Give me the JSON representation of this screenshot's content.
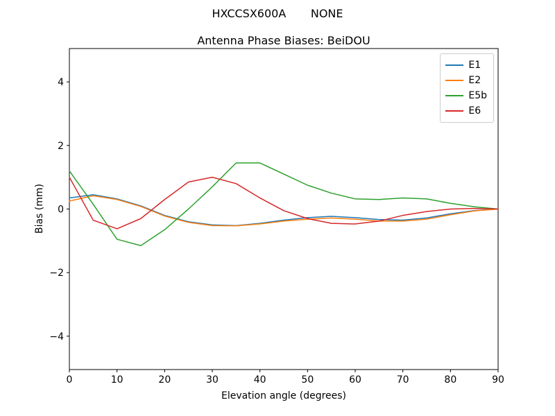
{
  "figure": {
    "suptitle": "HXCCSX600A       NONE",
    "title": "Antenna Phase Biases: BeiDOU",
    "xlabel": "Elevation angle (degrees)",
    "ylabel": "Bias (mm)"
  },
  "chart_data": {
    "type": "line",
    "suptitle": "HXCCSX600A       NONE",
    "title": "Antenna Phase Biases: BeiDOU",
    "xlabel": "Elevation angle (degrees)",
    "ylabel": "Bias (mm)",
    "xlim": [
      0,
      90
    ],
    "ylim": [
      -5.05,
      5.05
    ],
    "xticks": [
      0,
      10,
      20,
      30,
      40,
      50,
      60,
      70,
      80,
      90
    ],
    "yticks": [
      -4,
      -2,
      0,
      2,
      4
    ],
    "grid": false,
    "legend_position": "upper right",
    "x": [
      0,
      5,
      10,
      15,
      20,
      25,
      30,
      35,
      40,
      45,
      50,
      55,
      60,
      65,
      70,
      75,
      80,
      85,
      90
    ],
    "series": [
      {
        "name": "E1",
        "color": "#1f77b4",
        "values": [
          0.35,
          0.45,
          0.32,
          0.1,
          -0.2,
          -0.4,
          -0.5,
          -0.52,
          -0.45,
          -0.35,
          -0.27,
          -0.23,
          -0.27,
          -0.33,
          -0.35,
          -0.28,
          -0.15,
          -0.05,
          0.0
        ]
      },
      {
        "name": "E2",
        "color": "#ff7f0e",
        "values": [
          0.25,
          0.42,
          0.3,
          0.08,
          -0.22,
          -0.42,
          -0.52,
          -0.53,
          -0.47,
          -0.38,
          -0.32,
          -0.28,
          -0.32,
          -0.38,
          -0.38,
          -0.32,
          -0.18,
          -0.06,
          0.0
        ]
      },
      {
        "name": "E5b",
        "color": "#2ca02c",
        "values": [
          1.2,
          0.15,
          -0.95,
          -1.15,
          -0.65,
          0.0,
          0.7,
          1.45,
          1.45,
          1.1,
          0.75,
          0.5,
          0.32,
          0.3,
          0.35,
          0.32,
          0.18,
          0.07,
          0.0
        ]
      },
      {
        "name": "E6",
        "color": "#d62728",
        "values": [
          1.0,
          -0.35,
          -0.62,
          -0.3,
          0.3,
          0.85,
          1.0,
          0.8,
          0.35,
          -0.05,
          -0.3,
          -0.45,
          -0.47,
          -0.38,
          -0.2,
          -0.08,
          0.0,
          0.02,
          0.0
        ]
      }
    ]
  }
}
